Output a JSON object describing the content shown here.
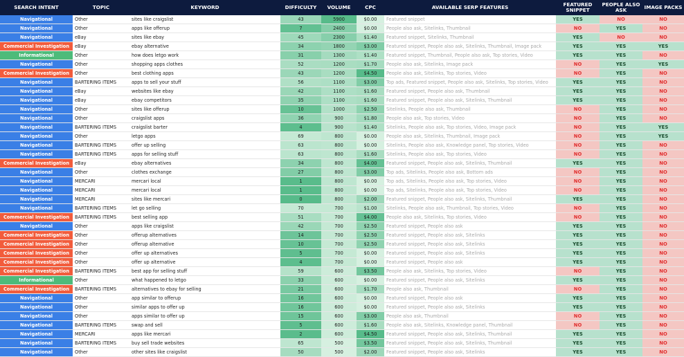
{
  "headers": [
    "SEARCH INTENT",
    "TOPIC",
    "KEYWORD",
    "DIFFICULTY",
    "VOLUME",
    "CPC",
    "AVAILABLE SERP FEATURES",
    "FEATURED SNIPPET",
    "PEOPLE ALSO ASK",
    "IMAGE PACKS"
  ],
  "colors": {
    "header_bg": "#0d1b3e",
    "navigational": "#3a7fe6",
    "commercial": "#f25c3c",
    "informational": "#4dbb7a",
    "yes_bg": "#b7e1cd",
    "no_bg": "#f4c7c3"
  },
  "rows": [
    {
      "intent": "Navigational",
      "topic": "Other",
      "keyword": "sites like craigslist",
      "difficulty": "43",
      "volume": "5900",
      "cpc": "$0.00",
      "serp": "Featured snippet",
      "fs": "YES",
      "paa": "NO",
      "img": "NO"
    },
    {
      "intent": "Navigational",
      "topic": "Other",
      "keyword": "apps like offerup",
      "difficulty": "7",
      "volume": "2400",
      "cpc": "$0.00",
      "serp": "People also ask, Sitelinks, Thumbnail",
      "fs": "NO",
      "paa": "YES",
      "img": "NO"
    },
    {
      "intent": "Navigational",
      "topic": "eBay",
      "keyword": "sites like ebay",
      "difficulty": "45",
      "volume": "2300",
      "cpc": "$1.40",
      "serp": "Featured snippet, Sitelinks, Thumbnail",
      "fs": "YES",
      "paa": "NO",
      "img": "NO"
    },
    {
      "intent": "Commercial Investigation",
      "topic": "eBay",
      "keyword": "ebay alternative",
      "difficulty": "34",
      "volume": "1800",
      "cpc": "$3.00",
      "serp": "Featured snippet, People also ask, Sitelinks, Thumbnail, Image pack",
      "fs": "YES",
      "paa": "YES",
      "img": "YES"
    },
    {
      "intent": "Informational",
      "topic": "Other",
      "keyword": "how does letgo work",
      "difficulty": "31",
      "volume": "1300",
      "cpc": "$1.40",
      "serp": "Featured snippet, Thumbnail, People also ask, Top stories, Video",
      "fs": "YES",
      "paa": "YES",
      "img": "NO"
    },
    {
      "intent": "Navigational",
      "topic": "Other",
      "keyword": "shopping apps clothes",
      "difficulty": "52",
      "volume": "1200",
      "cpc": "$1.70",
      "serp": "People also ask, Sitelinks, Image pack",
      "fs": "NO",
      "paa": "YES",
      "img": "YES"
    },
    {
      "intent": "Commercial Investigation",
      "topic": "Other",
      "keyword": "best clothing apps",
      "difficulty": "43",
      "volume": "1200",
      "cpc": "$4.50",
      "serp": "People also ask, Sitelinks, Top stories, Video",
      "fs": "NO",
      "paa": "YES",
      "img": "NO"
    },
    {
      "intent": "Navigational",
      "topic": "BARTERING ITEMS",
      "keyword": "apps to sell your stuff",
      "difficulty": "56",
      "volume": "1100",
      "cpc": "$3.00",
      "serp": "Top ads, Featured snippet, People also ask, Sitelinks, Top stories, Video",
      "fs": "YES",
      "paa": "YES",
      "img": "NO"
    },
    {
      "intent": "Navigational",
      "topic": "eBay",
      "keyword": "websites like ebay",
      "difficulty": "42",
      "volume": "1100",
      "cpc": "$1.60",
      "serp": "Featured snippet, People also ask, Thumbnail",
      "fs": "YES",
      "paa": "YES",
      "img": "NO"
    },
    {
      "intent": "Navigational",
      "topic": "eBay",
      "keyword": "ebay competitors",
      "difficulty": "35",
      "volume": "1100",
      "cpc": "$1.60",
      "serp": "Featured snippet, People also ask, Sitelinks, Thumbnail",
      "fs": "YES",
      "paa": "YES",
      "img": "NO"
    },
    {
      "intent": "Navigational",
      "topic": "Other",
      "keyword": "sites like offerup",
      "difficulty": "10",
      "volume": "1000",
      "cpc": "$2.50",
      "serp": "Sitelinks, People also ask, Thumbnail",
      "fs": "NO",
      "paa": "YES",
      "img": "NO"
    },
    {
      "intent": "Navigational",
      "topic": "Other",
      "keyword": "craigslist apps",
      "difficulty": "36",
      "volume": "900",
      "cpc": "$1.80",
      "serp": "People also ask, Top stories, Video",
      "fs": "NO",
      "paa": "YES",
      "img": "NO"
    },
    {
      "intent": "Navigational",
      "topic": "BARTERING ITEMS",
      "keyword": "craigslist barter",
      "difficulty": "4",
      "volume": "900",
      "cpc": "$1.40",
      "serp": "Sitelinks, People also ask, Top stories, Video, Image pack",
      "fs": "NO",
      "paa": "YES",
      "img": "YES"
    },
    {
      "intent": "Navigational",
      "topic": "Other",
      "keyword": "letgo apps",
      "difficulty": "69",
      "volume": "800",
      "cpc": "$0.00",
      "serp": "People also ask, Sitelinks, Thumbnail, Image pack",
      "fs": "NO",
      "paa": "YES",
      "img": "YES"
    },
    {
      "intent": "Navigational",
      "topic": "BARTERING ITEMS",
      "keyword": "offer up selling",
      "difficulty": "63",
      "volume": "800",
      "cpc": "$0.00",
      "serp": "Sitelinks, People also ask, Knowledge panel, Top stories, Video",
      "fs": "NO",
      "paa": "YES",
      "img": "NO"
    },
    {
      "intent": "Navigational",
      "topic": "BARTERING ITEMS",
      "keyword": "apps for selling stuff",
      "difficulty": "63",
      "volume": "800",
      "cpc": "$1.60",
      "serp": "Sitelinks, People also ask, Top stories, Video",
      "fs": "NO",
      "paa": "YES",
      "img": "NO"
    },
    {
      "intent": "Commercial Investigation",
      "topic": "eBay",
      "keyword": "ebay alternatives",
      "difficulty": "34",
      "volume": "800",
      "cpc": "$4.00",
      "serp": "Featured snippet, People also ask, Sitelinks, Thumbnail",
      "fs": "YES",
      "paa": "YES",
      "img": "NO"
    },
    {
      "intent": "Navigational",
      "topic": "Other",
      "keyword": "clothes exchange",
      "difficulty": "27",
      "volume": "800",
      "cpc": "$3.00",
      "serp": "Top ads, Sitelinks, People also ask, Bottom ads",
      "fs": "NO",
      "paa": "YES",
      "img": "NO"
    },
    {
      "intent": "Navigational",
      "topic": "MERCARI",
      "keyword": "mercari local",
      "difficulty": "1",
      "volume": "800",
      "cpc": "$0.00",
      "serp": "Top ads, Sitelinks, People also ask, Top stories, Video",
      "fs": "NO",
      "paa": "YES",
      "img": "NO"
    },
    {
      "intent": "Navigational",
      "topic": "MERCARI",
      "keyword": "mercari local",
      "difficulty": "1",
      "volume": "800",
      "cpc": "$0.00",
      "serp": "Top ads, Sitelinks, People also ask, Top stories, Video",
      "fs": "NO",
      "paa": "YES",
      "img": "NO"
    },
    {
      "intent": "Navigational",
      "topic": "MERCARI",
      "keyword": "sites like mercari",
      "difficulty": "0",
      "volume": "800",
      "cpc": "$2.00",
      "serp": "Featured snippet, People also ask, Sitelinks, Thumbnail",
      "fs": "YES",
      "paa": "YES",
      "img": "NO"
    },
    {
      "intent": "Navigational",
      "topic": "BARTERING ITEMS",
      "keyword": "let go selling",
      "difficulty": "70",
      "volume": "700",
      "cpc": "$1.00",
      "serp": "Sitelinks, People also ask, Thumbnail, Top stories, Video",
      "fs": "NO",
      "paa": "YES",
      "img": "NO"
    },
    {
      "intent": "Commercial Investigation",
      "topic": "BARTERING ITEMS",
      "keyword": "best selling app",
      "difficulty": "51",
      "volume": "700",
      "cpc": "$4.00",
      "serp": "People also ask, Sitelinks, Top stories, Video",
      "fs": "NO",
      "paa": "YES",
      "img": "NO"
    },
    {
      "intent": "Navigational",
      "topic": "Other",
      "keyword": "apps like craigslist",
      "difficulty": "42",
      "volume": "700",
      "cpc": "$2.50",
      "serp": "Featured snippet, People also ask",
      "fs": "YES",
      "paa": "YES",
      "img": "NO"
    },
    {
      "intent": "Commercial Investigation",
      "topic": "Other",
      "keyword": "offerup alternatives",
      "difficulty": "14",
      "volume": "700",
      "cpc": "$2.50",
      "serp": "Featured snippet, People also ask, Sitelinks",
      "fs": "YES",
      "paa": "YES",
      "img": "NO"
    },
    {
      "intent": "Commercial Investigation",
      "topic": "Other",
      "keyword": "offerup alternative",
      "difficulty": "10",
      "volume": "700",
      "cpc": "$2.50",
      "serp": "Featured snippet, People also ask, Sitelinks",
      "fs": "YES",
      "paa": "YES",
      "img": "NO"
    },
    {
      "intent": "Commercial Investigation",
      "topic": "Other",
      "keyword": "offer up alternatives",
      "difficulty": "5",
      "volume": "700",
      "cpc": "$0.00",
      "serp": "Featured snippet, People also ask, Sitelinks",
      "fs": "YES",
      "paa": "YES",
      "img": "NO"
    },
    {
      "intent": "Commercial Investigation",
      "topic": "Other",
      "keyword": "offer up alternative",
      "difficulty": "4",
      "volume": "700",
      "cpc": "$0.00",
      "serp": "Featured snippet, People also ask",
      "fs": "YES",
      "paa": "YES",
      "img": "NO"
    },
    {
      "intent": "Commercial Investigation",
      "topic": "BARTERING ITEMS",
      "keyword": "best app for selling stuff",
      "difficulty": "59",
      "volume": "600",
      "cpc": "$3.50",
      "serp": "People also ask, Sitelinks, Top stories, Video",
      "fs": "NO",
      "paa": "YES",
      "img": "NO"
    },
    {
      "intent": "Informational",
      "topic": "Other",
      "keyword": "what happened to letgo",
      "difficulty": "33",
      "volume": "600",
      "cpc": "$0.00",
      "serp": "Featured snippet, People also ask, Sitelinks",
      "fs": "YES",
      "paa": "YES",
      "img": "NO"
    },
    {
      "intent": "Commercial Investigation",
      "topic": "BARTERING ITEMS",
      "keyword": "alternatives to ebay for selling",
      "difficulty": "21",
      "volume": "600",
      "cpc": "$1.70",
      "serp": "People also ask, Thumbnail",
      "fs": "NO",
      "paa": "YES",
      "img": "NO"
    },
    {
      "intent": "Navigational",
      "topic": "Other",
      "keyword": "app similar to offerup",
      "difficulty": "16",
      "volume": "600",
      "cpc": "$0.00",
      "serp": "Featured snippet, People also ask",
      "fs": "YES",
      "paa": "YES",
      "img": "NO"
    },
    {
      "intent": "Navigational",
      "topic": "Other",
      "keyword": "similar apps to offer up",
      "difficulty": "16",
      "volume": "600",
      "cpc": "$0.00",
      "serp": "Featured snippet, People also ask, Sitelinks",
      "fs": "YES",
      "paa": "YES",
      "img": "NO"
    },
    {
      "intent": "Navigational",
      "topic": "Other",
      "keyword": "apps similar to offer up",
      "difficulty": "15",
      "volume": "600",
      "cpc": "$3.00",
      "serp": "People also ask, Thumbnail",
      "fs": "NO",
      "paa": "YES",
      "img": "NO"
    },
    {
      "intent": "Navigational",
      "topic": "BARTERING ITEMS",
      "keyword": "swap and sell",
      "difficulty": "5",
      "volume": "600",
      "cpc": "$1.60",
      "serp": "People also ask, Sitelinks, Knowledge panel, Thumbnail",
      "fs": "NO",
      "paa": "YES",
      "img": "NO"
    },
    {
      "intent": "Navigational",
      "topic": "MERCARI",
      "keyword": "apps like mercari",
      "difficulty": "2",
      "volume": "600",
      "cpc": "$4.50",
      "serp": "Featured snippet, People also ask, Sitelinks, Thumbnail",
      "fs": "YES",
      "paa": "YES",
      "img": "NO"
    },
    {
      "intent": "Navigational",
      "topic": "BARTERING ITEMS",
      "keyword": "buy sell trade websites",
      "difficulty": "65",
      "volume": "500",
      "cpc": "$3.50",
      "serp": "Featured snippet, People also ask, Sitelinks, Thumbnail",
      "fs": "YES",
      "paa": "YES",
      "img": "NO"
    },
    {
      "intent": "Navigational",
      "topic": "Other",
      "keyword": "other sites like craigslist",
      "difficulty": "50",
      "volume": "500",
      "cpc": "$2.00",
      "serp": "Featured snippet, People also ask, Sitelinks",
      "fs": "YES",
      "paa": "YES",
      "img": "NO"
    }
  ]
}
